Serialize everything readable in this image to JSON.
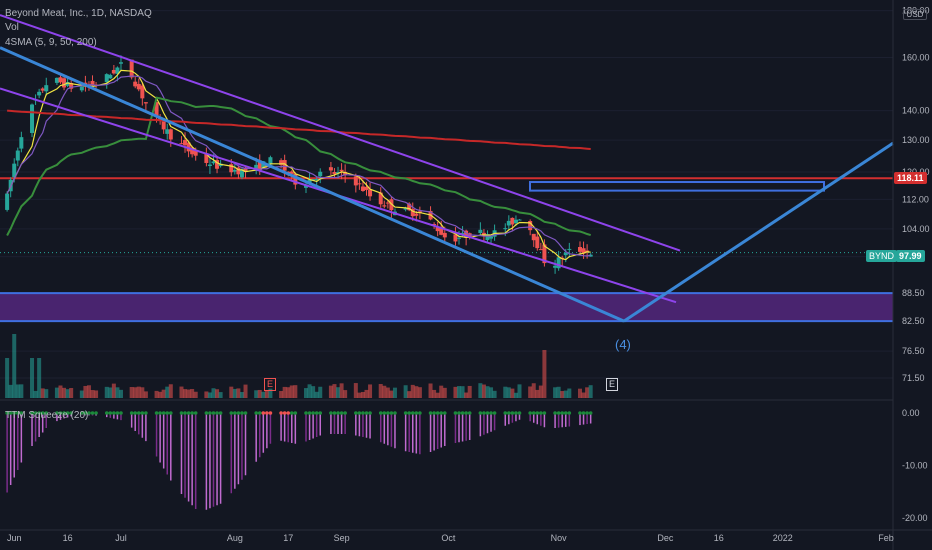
{
  "header": {
    "symbol_line": "Beyond Meat, Inc., 1D, NASDAQ",
    "volume_label": "Vol",
    "sma_label": "4SMA (5, 9, 50, 200)",
    "squeeze_label": "TTM Squeeze (20)",
    "currency": "USD",
    "wave_label": "(4)"
  },
  "markers": {
    "earnings": "E"
  },
  "badges": {
    "resistance": "118.11",
    "ticker": "BYND",
    "price": "97.99"
  },
  "colors": {
    "background": "#131722",
    "bull": "#26a69a",
    "bear": "#ef5350",
    "sma5": "#f0e442",
    "sma9": "#7e57c2",
    "sma50": "#388e3c",
    "sma200": "#c62828",
    "channel": "#8e44ec",
    "trend": "#3a86d6",
    "zone": "#5c2a8a",
    "histogram": "#c06bd0",
    "resistance": "#d32f2f"
  },
  "chart_data": [
    {
      "type": "candlestick",
      "title": "Beyond Meat, Inc., 1D, NASDAQ",
      "x_ticks": [
        "Jun",
        "16",
        "Jul",
        "Aug",
        "17",
        "Sep",
        "Oct",
        "Nov",
        "Dec",
        "16",
        "2022",
        "Feb"
      ],
      "y_ticks": [
        180.0,
        160.0,
        140.0,
        130.0,
        120.0,
        112.0,
        104.0,
        97.0,
        88.5,
        82.5,
        76.5,
        71.5
      ],
      "y_scale": "log",
      "ylim": [
        68,
        183
      ],
      "current_price": 97.99,
      "resistance_level": 118.11,
      "support_zone": [
        82.5,
        88.5
      ],
      "sma_lengths": [
        5,
        9,
        50,
        200
      ],
      "wave_target_price": 82.5,
      "close_path": [
        {
          "date": "2021-05-28",
          "close": 103
        },
        {
          "date": "2021-06-04",
          "close": 137
        },
        {
          "date": "2021-06-11",
          "close": 152
        },
        {
          "date": "2021-06-18",
          "close": 148
        },
        {
          "date": "2021-06-25",
          "close": 150
        },
        {
          "date": "2021-07-02",
          "close": 158
        },
        {
          "date": "2021-07-09",
          "close": 140
        },
        {
          "date": "2021-07-16",
          "close": 130
        },
        {
          "date": "2021-07-23",
          "close": 124
        },
        {
          "date": "2021-07-30",
          "close": 121
        },
        {
          "date": "2021-08-06",
          "close": 120
        },
        {
          "date": "2021-08-13",
          "close": 124
        },
        {
          "date": "2021-08-20",
          "close": 116
        },
        {
          "date": "2021-08-27",
          "close": 120
        },
        {
          "date": "2021-09-03",
          "close": 119
        },
        {
          "date": "2021-09-10",
          "close": 112
        },
        {
          "date": "2021-09-17",
          "close": 109
        },
        {
          "date": "2021-09-24",
          "close": 108
        },
        {
          "date": "2021-10-01",
          "close": 101
        },
        {
          "date": "2021-10-08",
          "close": 103
        },
        {
          "date": "2021-10-15",
          "close": 103
        },
        {
          "date": "2021-10-22",
          "close": 108
        },
        {
          "date": "2021-10-29",
          "close": 94
        },
        {
          "date": "2021-11-05",
          "close": 99
        },
        {
          "date": "2021-11-10",
          "close": 98
        }
      ],
      "squeeze": {
        "y_ticks": [
          0.0,
          -10.0,
          -20.0
        ],
        "ylim": [
          -21,
          1
        ],
        "histogram": [
          {
            "date": "2021-05-28",
            "value": -18
          },
          {
            "date": "2021-06-04",
            "value": -8
          },
          {
            "date": "2021-06-11",
            "value": -2
          },
          {
            "date": "2021-06-18",
            "value": -0.4
          },
          {
            "date": "2021-06-25",
            "value": -0.5
          },
          {
            "date": "2021-07-02",
            "value": -1.5
          },
          {
            "date": "2021-07-09",
            "value": -6
          },
          {
            "date": "2021-07-16",
            "value": -14
          },
          {
            "date": "2021-07-23",
            "value": -19
          },
          {
            "date": "2021-07-30",
            "value": -17
          },
          {
            "date": "2021-08-06",
            "value": -11
          },
          {
            "date": "2021-08-13",
            "value": -5
          },
          {
            "date": "2021-08-20",
            "value": -6
          },
          {
            "date": "2021-08-27",
            "value": -4
          },
          {
            "date": "2021-09-03",
            "value": -4
          },
          {
            "date": "2021-09-10",
            "value": -5
          },
          {
            "date": "2021-09-17",
            "value": -7
          },
          {
            "date": "2021-09-24",
            "value": -8
          },
          {
            "date": "2021-10-01",
            "value": -6
          },
          {
            "date": "2021-10-08",
            "value": -5
          },
          {
            "date": "2021-10-15",
            "value": -3
          },
          {
            "date": "2021-10-22",
            "value": -1
          },
          {
            "date": "2021-10-29",
            "value": -3
          },
          {
            "date": "2021-11-05",
            "value": -2.5
          },
          {
            "date": "2021-11-10",
            "value": -2
          }
        ]
      }
    }
  ]
}
